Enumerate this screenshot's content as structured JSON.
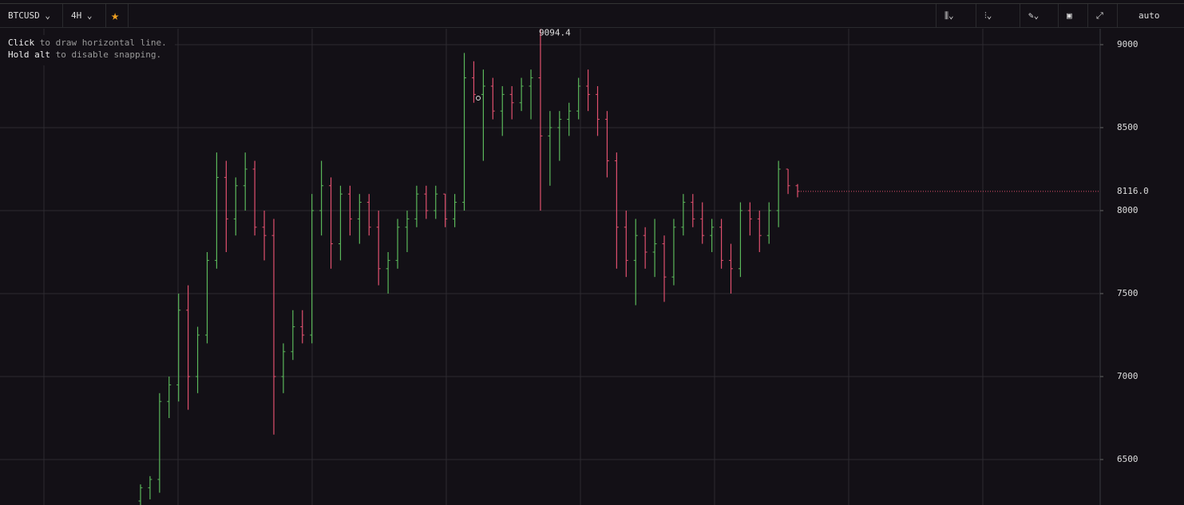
{
  "toolbar": {
    "symbol": "BTCUSD",
    "interval": "4H",
    "scale": "auto"
  },
  "hint": {
    "line1": [
      "Click",
      "to draw horizontal line."
    ],
    "line2": [
      "Hold alt",
      "to disable snapping."
    ]
  },
  "chart_data": {
    "type": "ohlc",
    "up_color": "#5bb85b",
    "down_color": "#e0506e",
    "ylim": [
      6226,
      9096
    ],
    "yticks": [
      6500,
      7000,
      7500,
      8000,
      8500,
      9000
    ],
    "grid": true,
    "last_price": {
      "value": 8116,
      "label": "8116.0"
    },
    "high_marker": {
      "value": 9094.4,
      "label": "9094.4"
    },
    "candles": [
      [
        6250,
        6350,
        6226,
        6330
      ],
      [
        6330,
        6400,
        6260,
        6380
      ],
      [
        6380,
        6900,
        6300,
        6850
      ],
      [
        6850,
        7000,
        6750,
        6950
      ],
      [
        6950,
        7500,
        6850,
        7400
      ],
      [
        7400,
        7550,
        6800,
        7000
      ],
      [
        7000,
        7300,
        6900,
        7250
      ],
      [
        7250,
        7750,
        7200,
        7700
      ],
      [
        7700,
        8350,
        7650,
        8200
      ],
      [
        8200,
        8300,
        7750,
        7950
      ],
      [
        7950,
        8200,
        7850,
        8150
      ],
      [
        8150,
        8350,
        8000,
        8250
      ],
      [
        8250,
        8300,
        7850,
        7900
      ],
      [
        7900,
        8000,
        7700,
        7850
      ],
      [
        7850,
        7950,
        6650,
        7000
      ],
      [
        7000,
        7200,
        6900,
        7150
      ],
      [
        7150,
        7400,
        7100,
        7300
      ],
      [
        7300,
        7400,
        7200,
        7250
      ],
      [
        7250,
        8100,
        7200,
        8000
      ],
      [
        8000,
        8300,
        7850,
        8150
      ],
      [
        8150,
        8200,
        7650,
        7800
      ],
      [
        7800,
        8150,
        7700,
        8100
      ],
      [
        8100,
        8150,
        7850,
        7950
      ],
      [
        7950,
        8100,
        7800,
        8050
      ],
      [
        8050,
        8100,
        7850,
        7900
      ],
      [
        7900,
        8000,
        7550,
        7650
      ],
      [
        7650,
        7750,
        7500,
        7700
      ],
      [
        7700,
        7950,
        7650,
        7900
      ],
      [
        7900,
        8000,
        7750,
        7950
      ],
      [
        7950,
        8150,
        7900,
        8100
      ],
      [
        8100,
        8150,
        7950,
        8000
      ],
      [
        8000,
        8150,
        7950,
        8100
      ],
      [
        8100,
        8100,
        7900,
        7950
      ],
      [
        7950,
        8100,
        7900,
        8050
      ],
      [
        8050,
        8950,
        8000,
        8800
      ],
      [
        8800,
        8900,
        8650,
        8700
      ],
      [
        8700,
        8850,
        8300,
        8750
      ],
      [
        8750,
        8800,
        8550,
        8600
      ],
      [
        8600,
        8750,
        8450,
        8700
      ],
      [
        8700,
        8750,
        8550,
        8650
      ],
      [
        8650,
        8800,
        8600,
        8750
      ],
      [
        8750,
        8850,
        8550,
        8800
      ],
      [
        8800,
        9094.4,
        8000,
        8450
      ],
      [
        8450,
        8600,
        8150,
        8500
      ],
      [
        8500,
        8600,
        8300,
        8550
      ],
      [
        8550,
        8650,
        8450,
        8600
      ],
      [
        8600,
        8800,
        8550,
        8750
      ],
      [
        8750,
        8850,
        8600,
        8700
      ],
      [
        8700,
        8750,
        8450,
        8550
      ],
      [
        8550,
        8600,
        8200,
        8300
      ],
      [
        8300,
        8350,
        7650,
        7900
      ],
      [
        7900,
        8000,
        7600,
        7700
      ],
      [
        7700,
        7950,
        7430,
        7850
      ],
      [
        7850,
        7900,
        7650,
        7750
      ],
      [
        7750,
        7950,
        7600,
        7800
      ],
      [
        7800,
        7850,
        7450,
        7600
      ],
      [
        7600,
        7950,
        7550,
        7900
      ],
      [
        7900,
        8100,
        7850,
        8050
      ],
      [
        8050,
        8100,
        7900,
        7950
      ],
      [
        7950,
        8050,
        7800,
        7850
      ],
      [
        7850,
        7950,
        7750,
        7900
      ],
      [
        7900,
        7950,
        7650,
        7700
      ],
      [
        7700,
        7800,
        7500,
        7650
      ],
      [
        7650,
        8050,
        7600,
        8000
      ],
      [
        8000,
        8050,
        7850,
        7950
      ],
      [
        7950,
        8000,
        7750,
        7850
      ],
      [
        7850,
        8050,
        7800,
        8000
      ],
      [
        8000,
        8300,
        7900,
        8250
      ],
      [
        8250,
        8250,
        8100,
        8150
      ],
      [
        8150,
        8160,
        8080,
        8116
      ]
    ]
  }
}
